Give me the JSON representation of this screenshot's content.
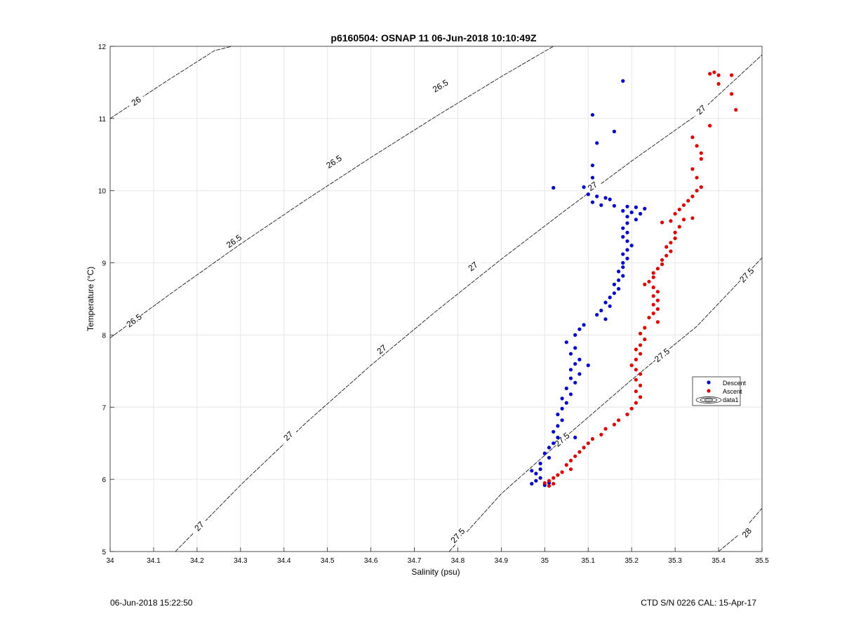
{
  "chart_data": {
    "type": "scatter",
    "title": "p6160504: OSNAP 11 06-Jun-2018 10:10:49Z",
    "xlabel": "Salinity (psu)",
    "ylabel": "Temperature (°C)",
    "xlim": [
      34,
      35.5
    ],
    "ylim": [
      5,
      12
    ],
    "xticks": [
      34,
      34.1,
      34.2,
      34.3,
      34.4,
      34.5,
      34.6,
      34.7,
      34.8,
      34.9,
      35,
      35.1,
      35.2,
      35.3,
      35.4,
      35.5
    ],
    "xtick_labels": [
      "34",
      "34.1",
      "34.2",
      "34.3",
      "34.4",
      "34.5",
      "34.6",
      "34.7",
      "34.8",
      "34.9",
      "35",
      "35.1",
      "35.2",
      "35.3",
      "35.4",
      "35.5"
    ],
    "yticks": [
      5,
      6,
      7,
      8,
      9,
      10,
      11,
      12
    ],
    "ytick_labels": [
      "5",
      "6",
      "7",
      "8",
      "9",
      "10",
      "11",
      "12"
    ],
    "grid": true,
    "legend": {
      "placement": "right",
      "entries": [
        "Descent",
        "Ascent",
        "data1"
      ]
    },
    "series": [
      {
        "name": "Descent",
        "color": "#0000cc",
        "points": [
          [
            35.18,
            11.52
          ],
          [
            35.11,
            11.05
          ],
          [
            35.16,
            10.82
          ],
          [
            35.12,
            10.66
          ],
          [
            35.11,
            10.35
          ],
          [
            35.11,
            10.18
          ],
          [
            35.02,
            10.04
          ],
          [
            35.09,
            10.05
          ],
          [
            35.1,
            9.95
          ],
          [
            35.12,
            9.92
          ],
          [
            35.14,
            9.9
          ],
          [
            35.15,
            9.88
          ],
          [
            35.11,
            9.84
          ],
          [
            35.13,
            9.8
          ],
          [
            35.16,
            9.79
          ],
          [
            35.19,
            9.78
          ],
          [
            35.21,
            9.77
          ],
          [
            35.23,
            9.75
          ],
          [
            35.18,
            9.72
          ],
          [
            35.2,
            9.7
          ],
          [
            35.22,
            9.68
          ],
          [
            35.19,
            9.64
          ],
          [
            35.21,
            9.6
          ],
          [
            35.19,
            9.55
          ],
          [
            35.18,
            9.48
          ],
          [
            35.19,
            9.42
          ],
          [
            35.18,
            9.36
          ],
          [
            35.19,
            9.3
          ],
          [
            35.2,
            9.24
          ],
          [
            35.19,
            9.18
          ],
          [
            35.18,
            9.12
          ],
          [
            35.19,
            9.06
          ],
          [
            35.18,
            9.0
          ],
          [
            35.18,
            8.94
          ],
          [
            35.17,
            8.88
          ],
          [
            35.18,
            8.82
          ],
          [
            35.17,
            8.76
          ],
          [
            35.16,
            8.7
          ],
          [
            35.17,
            8.64
          ],
          [
            35.16,
            8.58
          ],
          [
            35.15,
            8.52
          ],
          [
            35.14,
            8.45
          ],
          [
            35.15,
            8.4
          ],
          [
            35.13,
            8.34
          ],
          [
            35.12,
            8.28
          ],
          [
            35.14,
            8.22
          ],
          [
            35.09,
            8.14
          ],
          [
            35.08,
            8.08
          ],
          [
            35.07,
            8.0
          ],
          [
            35.05,
            7.9
          ],
          [
            35.07,
            7.82
          ],
          [
            35.06,
            7.74
          ],
          [
            35.08,
            7.66
          ],
          [
            35.07,
            7.6
          ],
          [
            35.06,
            7.52
          ],
          [
            35.08,
            7.46
          ],
          [
            35.1,
            7.58
          ],
          [
            35.06,
            7.4
          ],
          [
            35.07,
            7.34
          ],
          [
            35.05,
            7.26
          ],
          [
            35.06,
            7.18
          ],
          [
            35.04,
            7.12
          ],
          [
            35.05,
            7.06
          ],
          [
            35.04,
            6.98
          ],
          [
            35.03,
            6.9
          ],
          [
            35.04,
            6.82
          ],
          [
            35.03,
            6.74
          ],
          [
            35.02,
            6.66
          ],
          [
            35.03,
            6.58
          ],
          [
            35.07,
            6.58
          ],
          [
            35.02,
            6.5
          ],
          [
            35.01,
            6.44
          ],
          [
            35.0,
            6.36
          ],
          [
            35.01,
            6.3
          ],
          [
            34.99,
            6.22
          ],
          [
            34.99,
            6.14
          ],
          [
            34.98,
            6.08
          ],
          [
            34.97,
            6.12
          ],
          [
            34.99,
            6.02
          ],
          [
            34.98,
            5.98
          ],
          [
            34.97,
            5.94
          ],
          [
            35.0,
            5.92
          ],
          [
            35.01,
            5.95
          ]
        ]
      },
      {
        "name": "Ascent",
        "color": "#dd0000",
        "points": [
          [
            35.39,
            11.64
          ],
          [
            35.38,
            11.62
          ],
          [
            35.4,
            11.6
          ],
          [
            35.43,
            11.6
          ],
          [
            35.4,
            11.48
          ],
          [
            35.43,
            11.34
          ],
          [
            35.44,
            11.12
          ],
          [
            35.38,
            10.9
          ],
          [
            35.34,
            10.74
          ],
          [
            35.35,
            10.62
          ],
          [
            35.36,
            10.52
          ],
          [
            35.36,
            10.44
          ],
          [
            35.34,
            10.3
          ],
          [
            35.35,
            10.18
          ],
          [
            35.36,
            10.05
          ],
          [
            35.35,
            10.0
          ],
          [
            35.34,
            9.92
          ],
          [
            35.33,
            9.86
          ],
          [
            35.32,
            9.8
          ],
          [
            35.31,
            9.74
          ],
          [
            35.3,
            9.68
          ],
          [
            35.34,
            9.62
          ],
          [
            35.32,
            9.6
          ],
          [
            35.29,
            9.58
          ],
          [
            35.27,
            9.56
          ],
          [
            35.31,
            9.5
          ],
          [
            35.3,
            9.42
          ],
          [
            35.3,
            9.34
          ],
          [
            35.29,
            9.28
          ],
          [
            35.28,
            9.22
          ],
          [
            35.29,
            9.16
          ],
          [
            35.28,
            9.1
          ],
          [
            35.27,
            9.04
          ],
          [
            35.27,
            8.98
          ],
          [
            35.26,
            8.92
          ],
          [
            35.25,
            8.86
          ],
          [
            35.25,
            8.8
          ],
          [
            35.24,
            8.74
          ],
          [
            35.23,
            8.7
          ],
          [
            35.25,
            8.66
          ],
          [
            35.26,
            8.6
          ],
          [
            35.25,
            8.54
          ],
          [
            35.26,
            8.48
          ],
          [
            35.25,
            8.42
          ],
          [
            35.26,
            8.36
          ],
          [
            35.25,
            8.3
          ],
          [
            35.24,
            8.24
          ],
          [
            35.26,
            8.18
          ],
          [
            35.23,
            8.1
          ],
          [
            35.22,
            8.02
          ],
          [
            35.23,
            7.94
          ],
          [
            35.22,
            7.86
          ],
          [
            35.21,
            7.8
          ],
          [
            35.22,
            7.74
          ],
          [
            35.21,
            7.66
          ],
          [
            35.2,
            7.58
          ],
          [
            35.21,
            7.52
          ],
          [
            35.22,
            7.46
          ],
          [
            35.21,
            7.38
          ],
          [
            35.22,
            7.3
          ],
          [
            35.21,
            7.22
          ],
          [
            35.22,
            7.14
          ],
          [
            35.21,
            7.06
          ],
          [
            35.2,
            6.98
          ],
          [
            35.19,
            6.9
          ],
          [
            35.17,
            6.82
          ],
          [
            35.16,
            6.76
          ],
          [
            35.14,
            6.7
          ],
          [
            35.13,
            6.62
          ],
          [
            35.11,
            6.56
          ],
          [
            35.1,
            6.5
          ],
          [
            35.09,
            6.44
          ],
          [
            35.08,
            6.38
          ],
          [
            35.07,
            6.32
          ],
          [
            35.06,
            6.26
          ],
          [
            35.05,
            6.2
          ],
          [
            35.06,
            6.14
          ],
          [
            35.04,
            6.1
          ],
          [
            35.03,
            6.06
          ],
          [
            35.02,
            6.02
          ],
          [
            35.01,
            5.98
          ],
          [
            35.0,
            5.95
          ],
          [
            35.01,
            5.91
          ],
          [
            35.02,
            5.94
          ]
        ]
      }
    ],
    "density_contours": [
      {
        "label": "26",
        "points": [
          [
            34.0,
            11.0
          ],
          [
            34.12,
            11.48
          ],
          [
            34.24,
            11.94
          ],
          [
            34.28,
            12.0
          ]
        ],
        "labels_at": [
          [
            34.06,
            11.24
          ]
        ]
      },
      {
        "label": "26.5",
        "points": [
          [
            34.0,
            7.96
          ],
          [
            34.15,
            8.62
          ],
          [
            34.3,
            9.26
          ],
          [
            34.45,
            9.87
          ],
          [
            34.6,
            10.46
          ],
          [
            34.75,
            11.03
          ],
          [
            34.9,
            11.58
          ],
          [
            35.02,
            12.0
          ]
        ],
        "labels_at": [
          [
            34.055,
            8.2
          ],
          [
            34.285,
            9.3
          ],
          [
            34.515,
            10.4
          ],
          [
            34.76,
            11.45
          ]
        ]
      },
      {
        "label": "27",
        "points": [
          [
            34.15,
            5.0
          ],
          [
            34.3,
            5.92
          ],
          [
            34.45,
            6.78
          ],
          [
            34.6,
            7.58
          ],
          [
            34.75,
            8.33
          ],
          [
            34.9,
            9.05
          ],
          [
            35.05,
            9.74
          ],
          [
            35.2,
            10.41
          ],
          [
            35.35,
            11.05
          ],
          [
            35.5,
            11.88
          ]
        ],
        "labels_at": [
          [
            34.205,
            5.35
          ],
          [
            34.41,
            6.6
          ],
          [
            34.625,
            7.8
          ],
          [
            34.835,
            8.95
          ],
          [
            35.11,
            10.06
          ],
          [
            35.36,
            11.12
          ]
        ]
      },
      {
        "label": "27.5",
        "points": [
          [
            34.78,
            5.0
          ],
          [
            34.9,
            5.8
          ],
          [
            35.05,
            6.6
          ],
          [
            35.2,
            7.38
          ],
          [
            35.35,
            8.12
          ],
          [
            35.5,
            9.07
          ]
        ],
        "labels_at": [
          [
            34.8,
            5.22
          ],
          [
            35.04,
            6.55
          ],
          [
            35.27,
            7.72
          ],
          [
            35.465,
            8.83
          ]
        ]
      },
      {
        "label": "28",
        "points": [
          [
            35.4,
            5.0
          ],
          [
            35.45,
            5.25
          ],
          [
            35.5,
            5.6
          ]
        ],
        "labels_at": [
          [
            35.465,
            5.26
          ]
        ]
      }
    ]
  },
  "footer": {
    "timestamp": "06-Jun-2018 15:22:50",
    "instrument": "CTD S/N 0226  CAL: 15-Apr-17"
  }
}
